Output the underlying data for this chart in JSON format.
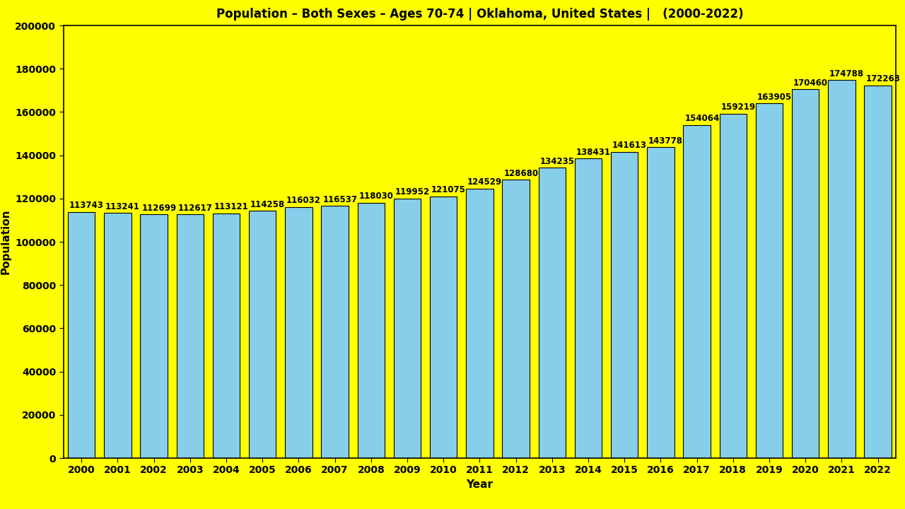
{
  "title": "Population – Both Sexes – Ages 70-74 | Oklahoma, United States |   (2000-2022)",
  "xlabel": "Year",
  "ylabel": "Population",
  "background_color": "#FFFF00",
  "bar_color": "#87CEEB",
  "bar_edge_color": "#000000",
  "years": [
    2000,
    2001,
    2002,
    2003,
    2004,
    2005,
    2006,
    2007,
    2008,
    2009,
    2010,
    2011,
    2012,
    2013,
    2014,
    2015,
    2016,
    2017,
    2018,
    2019,
    2020,
    2021,
    2022
  ],
  "values": [
    113743,
    113241,
    112699,
    112617,
    113121,
    114258,
    116032,
    116537,
    118030,
    119952,
    121075,
    124529,
    128680,
    134235,
    138431,
    141613,
    143778,
    154064,
    159219,
    163905,
    170460,
    174788,
    172263
  ],
  "ylim": [
    0,
    200000
  ],
  "yticks": [
    0,
    20000,
    40000,
    60000,
    80000,
    100000,
    120000,
    140000,
    160000,
    180000,
    200000
  ],
  "title_fontsize": 12,
  "label_fontsize": 11,
  "tick_fontsize": 10,
  "value_fontsize": 8.5
}
